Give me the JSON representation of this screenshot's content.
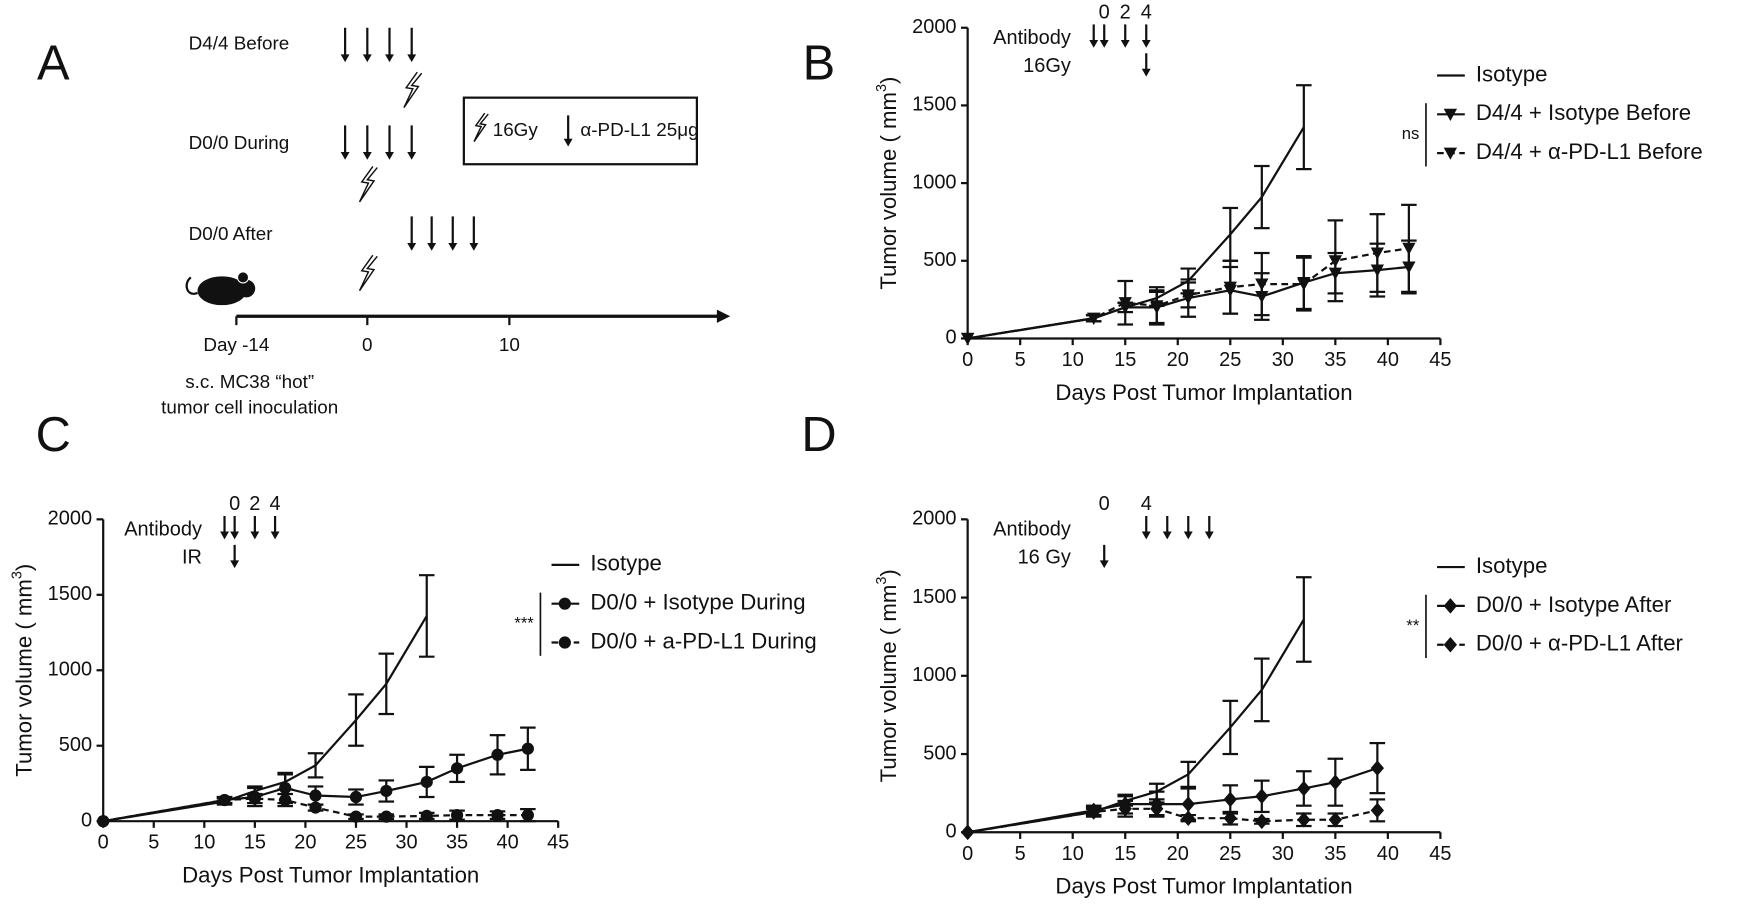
{
  "panel_labels": [
    "A",
    "B",
    "C",
    "D"
  ],
  "panel_a": {
    "rows": [
      "D4/4 Before",
      "D0/0 During",
      "D0/0 After"
    ],
    "legend": [
      "16Gy",
      "α-PD-L1 25μg"
    ],
    "timeline_labels": [
      "Day -14",
      "0",
      "10"
    ],
    "caption": [
      "s.c. MC38 “hot”",
      "tumor cell inoculation"
    ]
  },
  "chart_data": [
    {
      "type": "line",
      "x_label": "Days Post Tumor Implantation",
      "y_label": [
        "Tumor volume ( mm",
        "3",
        ")"
      ],
      "xlim": [
        0,
        45
      ],
      "xticks": [
        0,
        5,
        10,
        15,
        20,
        25,
        30,
        35,
        40,
        45
      ],
      "ylim": [
        0,
        2000
      ],
      "yticks": [
        0,
        500,
        1000,
        1500,
        2000
      ],
      "antibody_label": "Antibody",
      "ir_label": "16Gy",
      "antibody_days": [
        12,
        13,
        15,
        17
      ],
      "ir_days": [
        17
      ],
      "day_labels": [
        {
          "value": 13,
          "label": "0"
        },
        {
          "value": 15,
          "label": "2"
        },
        {
          "value": 17,
          "label": "4"
        }
      ],
      "significance": "ns",
      "series": [
        {
          "name": "Isotype",
          "color": "#111111",
          "marker": "none",
          "dashed": false,
          "x": [
            0,
            12,
            15,
            18,
            21,
            25,
            28,
            32
          ],
          "values": [
            0,
            130,
            200,
            260,
            370,
            670,
            910,
            1360
          ],
          "errors": [
            null,
            20,
            30,
            50,
            80,
            170,
            200,
            270
          ]
        },
        {
          "name": "D4/4 + Isotype Before",
          "color": "#111111",
          "marker": "triangle",
          "dashed": false,
          "x": [
            0,
            12,
            15,
            18,
            21,
            25,
            28,
            32,
            35,
            39,
            42
          ],
          "values": [
            0,
            130,
            200,
            200,
            260,
            310,
            270,
            360,
            420,
            440,
            460
          ],
          "errors": [
            null,
            20,
            30,
            100,
            120,
            150,
            150,
            170,
            130,
            170,
            170
          ]
        },
        {
          "name": "D4/4 + α-PD-L1 Before",
          "color": "#111111",
          "marker": "triangle",
          "dashed": true,
          "x": [
            0,
            12,
            15,
            18,
            21,
            25,
            28,
            32,
            35,
            39,
            42
          ],
          "values": [
            0,
            130,
            230,
            210,
            280,
            330,
            350,
            350,
            500,
            550,
            580
          ],
          "errors": [
            null,
            20,
            140,
            120,
            80,
            170,
            200,
            170,
            260,
            250,
            280
          ]
        }
      ]
    },
    {
      "type": "line",
      "x_label": "Days Post Tumor Implantation",
      "y_label": [
        "Tumor volume ( mm",
        "3",
        ")"
      ],
      "xlim": [
        0,
        45
      ],
      "xticks": [
        0,
        5,
        10,
        15,
        20,
        25,
        30,
        35,
        40,
        45
      ],
      "ylim": [
        0,
        2000
      ],
      "yticks": [
        0,
        500,
        1000,
        1500,
        2000
      ],
      "antibody_label": "Antibody",
      "ir_label": "IR",
      "antibody_days": [
        12,
        13,
        15,
        17
      ],
      "ir_days": [
        13
      ],
      "day_labels": [
        {
          "value": 13,
          "label": "0"
        },
        {
          "value": 15,
          "label": "2"
        },
        {
          "value": 17,
          "label": "4"
        }
      ],
      "significance": "***",
      "series": [
        {
          "name": "Isotype",
          "color": "#111111",
          "marker": "none",
          "dashed": false,
          "x": [
            0,
            12,
            15,
            18,
            21,
            25,
            28,
            32
          ],
          "values": [
            0,
            130,
            200,
            260,
            370,
            670,
            910,
            1360
          ],
          "errors": [
            null,
            20,
            30,
            50,
            80,
            170,
            200,
            270
          ]
        },
        {
          "name": "D0/0 + Isotype During",
          "color": "#111111",
          "marker": "circle",
          "dashed": false,
          "x": [
            0,
            12,
            15,
            18,
            21,
            25,
            28,
            32,
            35,
            39,
            42
          ],
          "values": [
            0,
            140,
            160,
            220,
            170,
            160,
            200,
            260,
            350,
            440,
            480
          ],
          "errors": [
            null,
            20,
            60,
            100,
            60,
            50,
            70,
            100,
            90,
            130,
            140
          ]
        },
        {
          "name": "D0/0 + a-PD-L1 During",
          "color": "#111111",
          "marker": "circle",
          "dashed": true,
          "x": [
            0,
            12,
            15,
            18,
            21,
            25,
            28,
            32,
            35,
            39,
            42
          ],
          "values": [
            0,
            140,
            150,
            140,
            90,
            30,
            30,
            35,
            40,
            40,
            40
          ],
          "errors": [
            null,
            20,
            30,
            40,
            20,
            15,
            15,
            20,
            30,
            25,
            40
          ]
        }
      ]
    },
    {
      "type": "line",
      "x_label": "Days Post Tumor Implantation",
      "y_label": [
        "Tumor volume ( mm",
        "3",
        ")"
      ],
      "xlim": [
        0,
        45
      ],
      "xticks": [
        0,
        5,
        10,
        15,
        20,
        25,
        30,
        35,
        40,
        45
      ],
      "ylim": [
        0,
        2000
      ],
      "yticks": [
        0,
        500,
        1000,
        1500,
        2000
      ],
      "antibody_label": "Antibody",
      "ir_label": "16 Gy",
      "antibody_days": [
        17,
        19,
        21,
        23
      ],
      "ir_days": [
        13
      ],
      "day_labels": [
        {
          "value": 13,
          "label": "0"
        },
        {
          "value": 17,
          "label": "4"
        }
      ],
      "significance": "**",
      "series": [
        {
          "name": "Isotype",
          "color": "#111111",
          "marker": "none",
          "dashed": false,
          "x": [
            0,
            12,
            15,
            18,
            21,
            25,
            28,
            32
          ],
          "values": [
            0,
            130,
            200,
            260,
            370,
            670,
            910,
            1360
          ],
          "errors": [
            null,
            20,
            30,
            50,
            80,
            170,
            200,
            270
          ]
        },
        {
          "name": "D0/0 + Isotype After",
          "color": "#111111",
          "marker": "diamond",
          "dashed": false,
          "x": [
            0,
            12,
            15,
            18,
            21,
            25,
            28,
            32,
            35,
            39
          ],
          "values": [
            0,
            140,
            180,
            180,
            180,
            210,
            230,
            280,
            320,
            410
          ],
          "errors": [
            null,
            30,
            60,
            80,
            100,
            90,
            100,
            110,
            150,
            160
          ]
        },
        {
          "name": "D0/0 + α-PD-L1 After",
          "color": "#111111",
          "marker": "diamond",
          "dashed": true,
          "x": [
            0,
            12,
            15,
            18,
            21,
            25,
            28,
            32,
            35,
            39
          ],
          "values": [
            0,
            130,
            150,
            150,
            90,
            90,
            70,
            80,
            80,
            140
          ],
          "errors": [
            null,
            30,
            50,
            40,
            20,
            40,
            15,
            40,
            40,
            70
          ]
        }
      ]
    }
  ]
}
